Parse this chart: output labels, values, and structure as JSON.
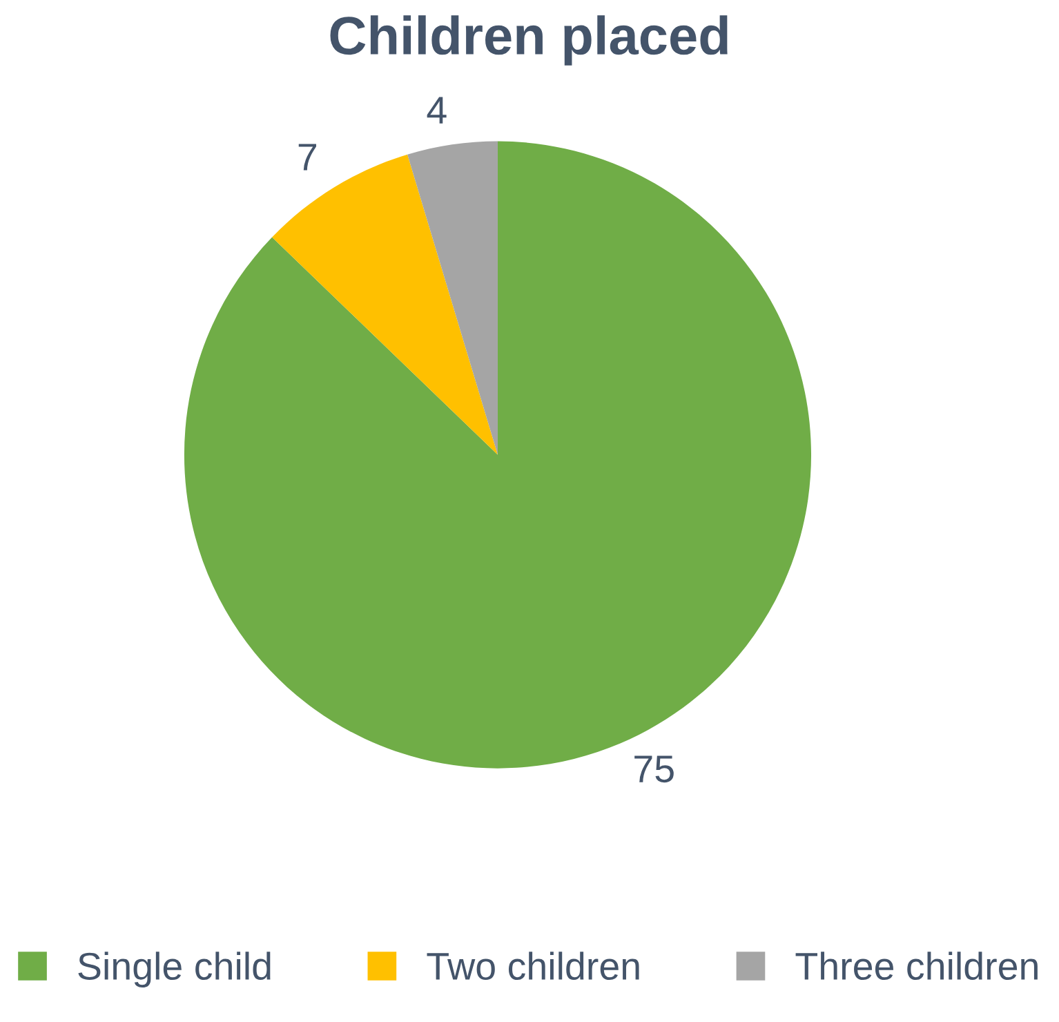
{
  "chart_data": {
    "type": "pie",
    "title": "Children placed",
    "categories": [
      "Single child",
      "Two children",
      "Three children"
    ],
    "values": [
      75,
      7,
      4
    ],
    "colors": [
      "#70ad47",
      "#ffc000",
      "#a5a5a5"
    ],
    "data_labels": true,
    "legend": "bottom"
  }
}
